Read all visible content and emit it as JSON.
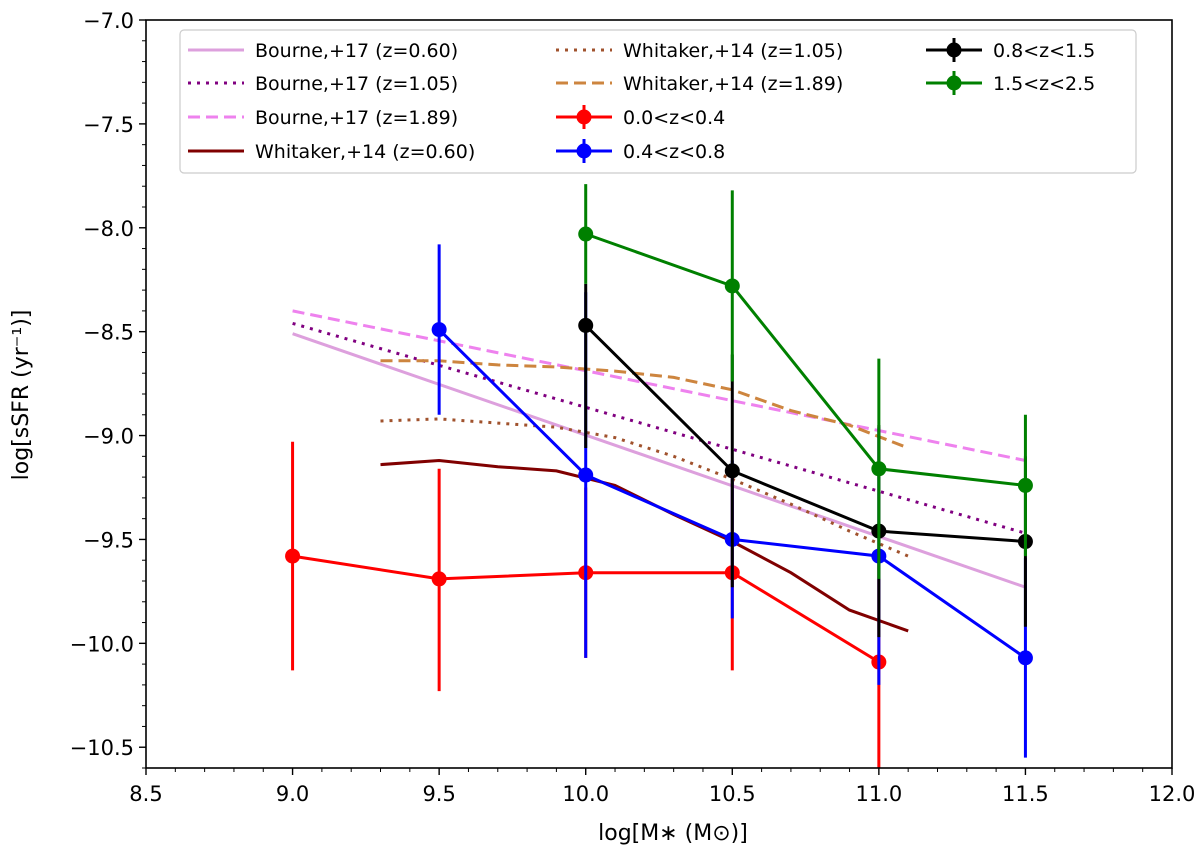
{
  "chart_data": {
    "type": "line",
    "title": "",
    "xlabel": "log[M∗ (M⊙)]",
    "ylabel": "log[sSFR (yr⁻¹)]",
    "xlim": [
      8.5,
      12.0
    ],
    "ylim": [
      -10.6,
      -7.0
    ],
    "xticks": [
      8.5,
      9.0,
      9.5,
      10.0,
      10.5,
      11.0,
      11.5,
      12.0
    ],
    "xtick_labels": [
      "8.5",
      "9.0",
      "9.5",
      "10.0",
      "10.5",
      "11.0",
      "11.5",
      "12.0"
    ],
    "yticks": [
      -7.0,
      -7.5,
      -8.0,
      -8.5,
      -9.0,
      -9.5,
      -10.0,
      -10.5
    ],
    "ytick_labels": [
      "−7.0",
      "−7.5",
      "−8.0",
      "−8.5",
      "−9.0",
      "−9.5",
      "−10.0",
      "−10.5"
    ],
    "grid": false,
    "legend_position": "top",
    "series": [
      {
        "name": "Bourne,+17 (z=0.60)",
        "kind": "line",
        "style": "solid",
        "color": "#dda0dd",
        "x": [
          9.0,
          11.5
        ],
        "y": [
          -8.51,
          -9.73
        ]
      },
      {
        "name": "Bourne,+17 (z=1.05)",
        "kind": "line",
        "style": "dotted",
        "color": "#800080",
        "x": [
          9.0,
          11.5
        ],
        "y": [
          -8.46,
          -9.47
        ]
      },
      {
        "name": "Bourne,+17 (z=1.89)",
        "kind": "line",
        "style": "dashed",
        "color": "#ee82ee",
        "x": [
          9.0,
          11.5
        ],
        "y": [
          -8.4,
          -9.12
        ]
      },
      {
        "name": "Whitaker,+14 (z=0.60)",
        "kind": "line",
        "style": "solid",
        "color": "#800000",
        "x": [
          9.3,
          9.5,
          9.7,
          9.9,
          10.1,
          10.3,
          10.5,
          10.7,
          10.9,
          11.1
        ],
        "y": [
          -9.14,
          -9.12,
          -9.15,
          -9.17,
          -9.24,
          -9.38,
          -9.51,
          -9.66,
          -9.84,
          -9.94
        ]
      },
      {
        "name": "Whitaker,+14 (z=1.05)",
        "kind": "line",
        "style": "dotted",
        "color": "#a0522d",
        "x": [
          9.3,
          9.5,
          9.7,
          9.9,
          10.1,
          10.3,
          10.5,
          10.7,
          10.9,
          11.1
        ],
        "y": [
          -8.93,
          -8.92,
          -8.94,
          -8.96,
          -9.01,
          -9.1,
          -9.21,
          -9.33,
          -9.46,
          -9.58
        ]
      },
      {
        "name": "Whitaker,+14 (z=1.89)",
        "kind": "line",
        "style": "dashed",
        "color": "#cd853f",
        "x": [
          9.3,
          9.5,
          9.7,
          9.9,
          10.1,
          10.3,
          10.5,
          10.7,
          10.9,
          11.1
        ],
        "y": [
          -8.64,
          -8.64,
          -8.66,
          -8.67,
          -8.69,
          -8.72,
          -8.78,
          -8.88,
          -8.95,
          -9.06
        ]
      },
      {
        "name": "0.0<z<0.4",
        "kind": "errorbar",
        "color": "#ff0000",
        "x": [
          9.0,
          9.5,
          10.0,
          10.5,
          11.0
        ],
        "y": [
          -9.58,
          -9.69,
          -9.66,
          -9.66,
          -10.09
        ],
        "yerr_low": [
          0.55,
          0.54,
          0.41,
          0.47,
          0.55
        ],
        "yerr_high": [
          0.55,
          0.53,
          0.41,
          0.47,
          0.55
        ]
      },
      {
        "name": "0.4<z<0.8",
        "kind": "errorbar",
        "color": "#0000ff",
        "x": [
          9.5,
          10.0,
          10.5,
          11.0,
          11.5
        ],
        "y": [
          -8.49,
          -9.19,
          -9.5,
          -9.58,
          -10.07
        ],
        "yerr_low": [
          0.41,
          0.88,
          0.38,
          0.62,
          0.48
        ],
        "yerr_high": [
          0.41,
          0.88,
          0.38,
          0.62,
          0.48
        ]
      },
      {
        "name": "0.8<z<1.5",
        "kind": "errorbar",
        "color": "#000000",
        "x": [
          10.0,
          10.5,
          11.0,
          11.5
        ],
        "y": [
          -8.47,
          -9.17,
          -9.46,
          -9.51
        ],
        "yerr_low": [
          0.59,
          0.56,
          0.51,
          0.41
        ],
        "yerr_high": [
          0.2,
          0.56,
          0.51,
          0.41
        ]
      },
      {
        "name": "1.5<z<2.5",
        "kind": "errorbar",
        "color": "#008000",
        "x": [
          10.0,
          10.5,
          11.0,
          11.5
        ],
        "y": [
          -8.03,
          -8.28,
          -9.16,
          -9.24
        ],
        "yerr_low": [
          0.24,
          0.46,
          0.53,
          0.34
        ],
        "yerr_high": [
          0.24,
          0.46,
          0.53,
          0.34
        ]
      }
    ],
    "legend_order": [
      0,
      1,
      2,
      3,
      4,
      5,
      6,
      7,
      8,
      9
    ]
  }
}
